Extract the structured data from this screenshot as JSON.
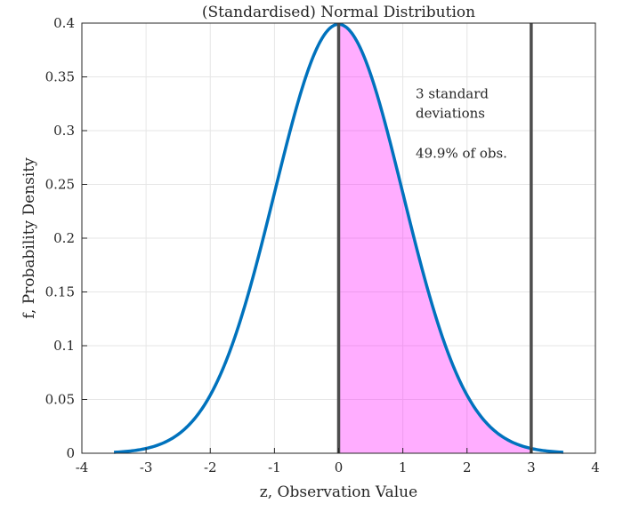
{
  "chart_data": {
    "type": "line",
    "title": "(Standardised) Normal Distribution",
    "xlabel": "z, Observation Value",
    "ylabel": "f, Probability Density",
    "xlim": [
      -4,
      4
    ],
    "ylim": [
      0,
      0.4
    ],
    "xticks": [
      -4,
      -3,
      -2,
      -1,
      0,
      1,
      2,
      3,
      4
    ],
    "xtick_labels": [
      "-4",
      "-3",
      "-2",
      "-1",
      "0",
      "1",
      "2",
      "3",
      "4"
    ],
    "yticks": [
      0,
      0.05,
      0.1,
      0.15,
      0.2,
      0.25,
      0.3,
      0.35,
      0.4
    ],
    "ytick_labels": [
      "0",
      "0.05",
      "0.1",
      "0.15",
      "0.2",
      "0.25",
      "0.3",
      "0.35",
      "0.4"
    ],
    "grid": true,
    "series": [
      {
        "x": [
          -3.5,
          -3.0,
          -2.5,
          -2.0,
          -1.5,
          -1.0,
          -0.5,
          0.0,
          0.5,
          1.0,
          1.5,
          2.0,
          2.5,
          3.0,
          3.5
        ],
        "y": [
          0.0009,
          0.0044,
          0.0175,
          0.054,
          0.1295,
          0.242,
          0.3521,
          0.3989,
          0.3521,
          0.242,
          0.1295,
          0.054,
          0.0175,
          0.0044,
          0.0009
        ],
        "color": "#0072bd"
      }
    ],
    "shaded_region": {
      "x_from": 0,
      "x_to": 3,
      "color": "#ff00ff"
    },
    "vertical_lines": [
      {
        "x": 0,
        "color": "#4d4d4d"
      },
      {
        "x": 3,
        "color": "#4d4d4d"
      }
    ],
    "annotations": [
      {
        "lines": [
          "3 standard",
          "deviations"
        ],
        "x": 1.2,
        "y": 0.33
      },
      {
        "lines": [
          "49.9% of obs."
        ],
        "x": 1.2,
        "y": 0.275
      }
    ]
  }
}
